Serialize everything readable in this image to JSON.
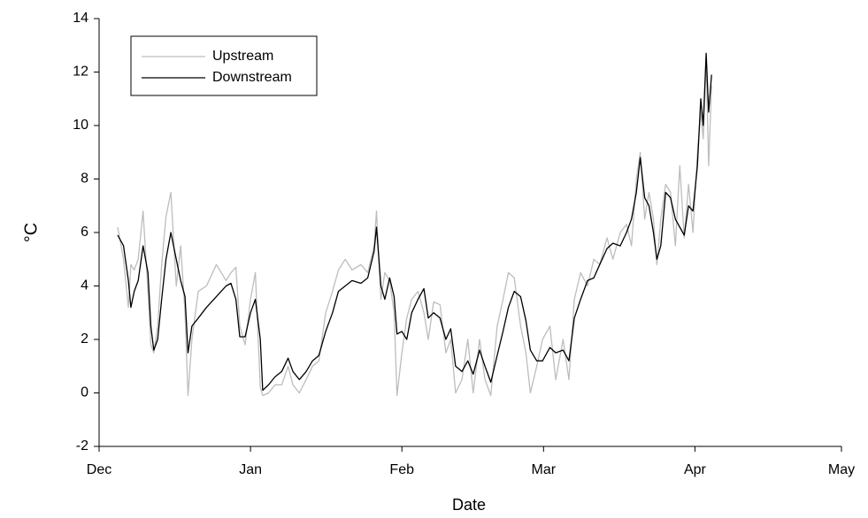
{
  "chart_data": {
    "type": "line",
    "x_label": "Date",
    "y_label": "°C",
    "xlim": [
      0,
      152
    ],
    "xticks": [
      {
        "value": 0,
        "label": "Dec"
      },
      {
        "value": 31,
        "label": "Jan"
      },
      {
        "value": 62,
        "label": "Feb"
      },
      {
        "value": 91,
        "label": "Mar"
      },
      {
        "value": 122,
        "label": "Apr"
      },
      {
        "value": 152,
        "label": "May"
      }
    ],
    "ylim": [
      -2,
      14
    ],
    "yticks": [
      -2,
      0,
      2,
      4,
      6,
      8,
      10,
      12,
      14
    ],
    "legend": "top-left",
    "x": [
      3.8,
      5,
      6,
      6.5,
      7.2,
      8,
      9,
      10,
      10.6,
      11.2,
      12,
      12.8,
      13.7,
      14.7,
      15.8,
      16.7,
      17.6,
      18.2,
      19,
      20.3,
      22,
      24,
      26,
      27,
      28,
      28.8,
      29.9,
      31,
      32,
      33,
      33.5,
      34.7,
      36,
      37.4,
      38.7,
      39.7,
      41,
      42.4,
      43.7,
      45,
      46.4,
      47.8,
      49,
      50.4,
      51.8,
      53.6,
      55,
      56.3,
      56.8,
      57.7,
      58.5,
      59.5,
      60.4,
      61,
      62,
      63,
      64,
      65.3,
      66.5,
      67.4,
      68.5,
      69.8,
      71,
      72,
      73,
      74.3,
      75.5,
      76.6,
      77.9,
      79,
      80.2,
      81.5,
      82.7,
      83.8,
      85,
      86.3,
      87.4,
      88.3,
      89.6,
      90.8,
      92.3,
      93.5,
      95,
      96.2,
      97.3,
      98.6,
      100,
      101.3,
      102.5,
      104,
      105.2,
      106.7,
      108,
      109,
      110,
      110.8,
      111.7,
      112.6,
      113.5,
      114.2,
      115,
      116,
      117,
      118,
      118.9,
      119.8,
      120.7,
      121.6,
      122.5,
      123.2,
      123.7,
      124.3,
      124.8,
      125.4
    ],
    "series": [
      {
        "name": "Upstream",
        "color": "#bdbdbd",
        "values": [
          6.2,
          5.0,
          3.2,
          4.8,
          4.6,
          5.0,
          6.8,
          3.8,
          1.8,
          1.5,
          2.5,
          4.8,
          6.6,
          7.5,
          4.0,
          5.5,
          3.0,
          -0.1,
          2.0,
          3.8,
          4.0,
          4.8,
          4.2,
          4.5,
          4.7,
          2.5,
          1.8,
          3.5,
          4.5,
          0.2,
          -0.1,
          0.0,
          0.3,
          0.3,
          1.0,
          0.3,
          0.0,
          0.5,
          1.0,
          1.2,
          3.0,
          3.8,
          4.6,
          5.0,
          4.6,
          4.8,
          4.5,
          5.5,
          6.8,
          3.5,
          4.5,
          4.2,
          3.0,
          -0.1,
          1.5,
          2.8,
          3.5,
          3.8,
          3.0,
          2.0,
          3.4,
          3.3,
          1.5,
          2.0,
          0.0,
          0.5,
          2.0,
          0.0,
          2.0,
          0.5,
          -0.1,
          2.5,
          3.5,
          4.5,
          4.3,
          2.5,
          1.5,
          0.0,
          1.0,
          2.0,
          2.5,
          0.5,
          2.0,
          0.5,
          3.5,
          4.5,
          4.0,
          5.0,
          4.8,
          5.8,
          5.0,
          6.0,
          6.3,
          5.5,
          8.0,
          9.0,
          6.5,
          7.5,
          6.5,
          4.8,
          6.5,
          7.8,
          7.5,
          5.5,
          8.5,
          5.8,
          7.8,
          6.0,
          9.0,
          10.5,
          9.5,
          12.5,
          8.5,
          11.5
        ]
      },
      {
        "name": "Downstream",
        "color": "#000000",
        "values": [
          5.9,
          5.5,
          4.2,
          3.2,
          3.8,
          4.2,
          5.5,
          4.5,
          2.5,
          1.6,
          2.0,
          3.5,
          5.0,
          6.0,
          5.0,
          4.2,
          3.6,
          1.5,
          2.5,
          2.8,
          3.2,
          3.6,
          4.0,
          4.1,
          3.5,
          2.1,
          2.1,
          3.0,
          3.5,
          2.0,
          0.1,
          0.3,
          0.6,
          0.8,
          1.3,
          0.8,
          0.5,
          0.8,
          1.2,
          1.4,
          2.3,
          3.0,
          3.8,
          4.0,
          4.2,
          4.1,
          4.3,
          5.3,
          6.2,
          4.0,
          3.5,
          4.3,
          3.6,
          2.2,
          2.3,
          2.0,
          3.0,
          3.5,
          3.9,
          2.8,
          3.0,
          2.8,
          2.0,
          2.4,
          1.0,
          0.8,
          1.2,
          0.7,
          1.6,
          1.0,
          0.4,
          1.4,
          2.3,
          3.2,
          3.8,
          3.6,
          2.7,
          1.6,
          1.2,
          1.2,
          1.7,
          1.5,
          1.6,
          1.2,
          2.8,
          3.5,
          4.2,
          4.3,
          4.8,
          5.4,
          5.6,
          5.5,
          6.0,
          6.5,
          7.5,
          8.8,
          7.3,
          7.0,
          6.0,
          5.0,
          5.5,
          7.5,
          7.3,
          6.5,
          6.2,
          5.9,
          7.0,
          6.8,
          8.5,
          11.0,
          10.0,
          12.7,
          10.5,
          11.9
        ]
      }
    ]
  }
}
